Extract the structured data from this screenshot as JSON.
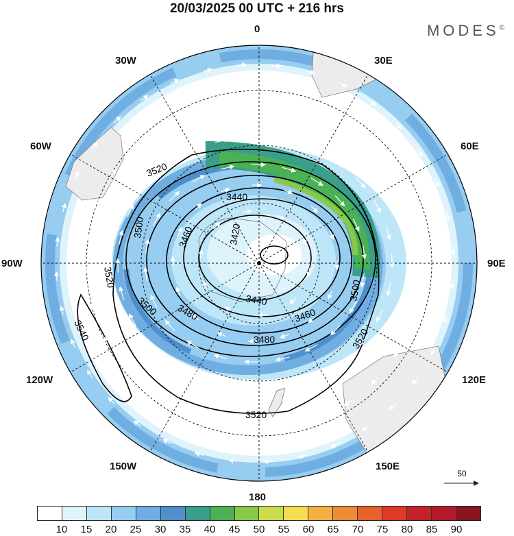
{
  "header": {
    "title": "20/03/2025  00 UTC  + 216 hrs",
    "brand": "MODES",
    "brand_mark": "©"
  },
  "map": {
    "projection": "polar stereographic (south pole)",
    "longitude_labels": {
      "top": "0",
      "top_right": "30E",
      "upper_right": "60E",
      "right": "90E",
      "lower_right": "120E",
      "bottom_right": "150E",
      "bottom": "180",
      "bottom_left": "150W",
      "lower_left": "120W",
      "left": "90W",
      "upper_left": "60W",
      "top_left": "30W"
    },
    "contour_labels": [
      "3420",
      "3440",
      "3440",
      "3460",
      "3460",
      "3460",
      "3480",
      "3480",
      "3480",
      "3500",
      "3500",
      "3500",
      "3520",
      "3520",
      "3520",
      "3520",
      "3520",
      "3540"
    ],
    "contour_line_color": "#000000",
    "vector_color": "#ffffff",
    "land_color": "#ececec"
  },
  "reference_vector": {
    "value": "50"
  },
  "colorbar": {
    "ticks": [
      "10",
      "15",
      "20",
      "25",
      "30",
      "35",
      "40",
      "45",
      "50",
      "55",
      "60",
      "65",
      "70",
      "75",
      "80",
      "85",
      "90"
    ],
    "colors": [
      "#ffffff",
      "#def3fc",
      "#bde6f8",
      "#96cdf0",
      "#70aee2",
      "#4e8fcc",
      "#3a9e8a",
      "#4bb154",
      "#88c94a",
      "#c8dc4c",
      "#f6dd52",
      "#f4b143",
      "#ee8b35",
      "#e8602c",
      "#dd3a2a",
      "#c42226",
      "#b21a2a",
      "#8a1420"
    ]
  }
}
